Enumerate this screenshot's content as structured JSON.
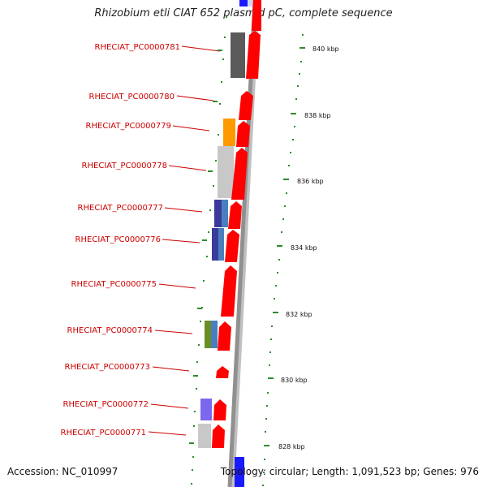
{
  "title": "Rhizobium etli CIAT 652 plasmid pC, complete sequence",
  "footer": {
    "accession": "Accession: NC_010997",
    "topology": "Topology: circular; Length: 1,091,523 bp; Genes: 976"
  },
  "scale_labels": [
    "840 kbp",
    "838 kbp",
    "836 kbp",
    "834 kbp",
    "832 kbp",
    "830 kbp",
    "828 kbp"
  ],
  "gene_labels": [
    "RHECIAT_PC0000781",
    "RHECIAT_PC0000780",
    "RHECIAT_PC0000779",
    "RHECIAT_PC0000778",
    "RHECIAT_PC0000777",
    "RHECIAT_PC0000776",
    "RHECIAT_PC0000775",
    "RHECIAT_PC0000774",
    "RHECIAT_PC0000773",
    "RHECIAT_PC0000772",
    "RHECIAT_PC0000771"
  ],
  "colors": {
    "cds": "#ff0000",
    "label": "#cc0000",
    "scale": "#2e8b2e",
    "backbone": "#909090",
    "cog_dark": "#5a5a5a",
    "cog_orange": "#ff9900",
    "cog_light": "#c8c8c8",
    "cog_navy": "#3a3a9a",
    "cog_blue": "#4a7fbf",
    "cog_olive": "#6b8e23",
    "cog_purple": "#7b68ee"
  }
}
